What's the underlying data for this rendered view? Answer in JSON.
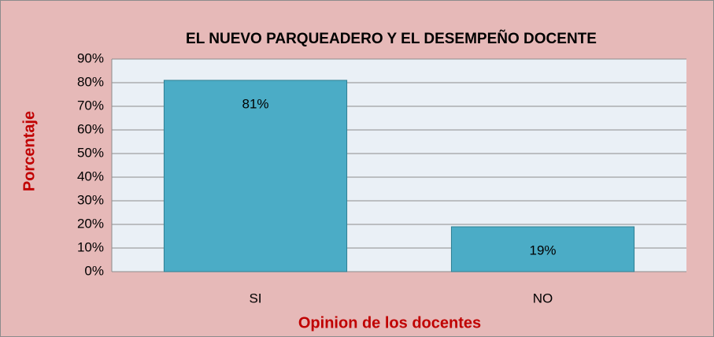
{
  "chart_data": {
    "type": "bar",
    "title": "EL NUEVO PARQUEADERO Y EL DESEMPEÑO DOCENTE",
    "x_label": "Opinion de los docentes",
    "y_label": "Porcentaje",
    "categories": [
      "SI",
      "NO"
    ],
    "values": [
      81,
      19
    ],
    "value_labels": [
      "81%",
      "19%"
    ],
    "color": "#4bacc6",
    "ylim": [
      0,
      90
    ],
    "yticks": [
      {
        "value": 0,
        "label": "0%"
      },
      {
        "value": 10,
        "label": "10%"
      },
      {
        "value": 20,
        "label": "20%"
      },
      {
        "value": 30,
        "label": "30%"
      },
      {
        "value": 40,
        "label": "40%"
      },
      {
        "value": 50,
        "label": "50%"
      },
      {
        "value": 60,
        "label": "60%"
      },
      {
        "value": 70,
        "label": "70%"
      },
      {
        "value": 80,
        "label": "80%"
      },
      {
        "value": 90,
        "label": "90%"
      }
    ],
    "grid": true
  }
}
